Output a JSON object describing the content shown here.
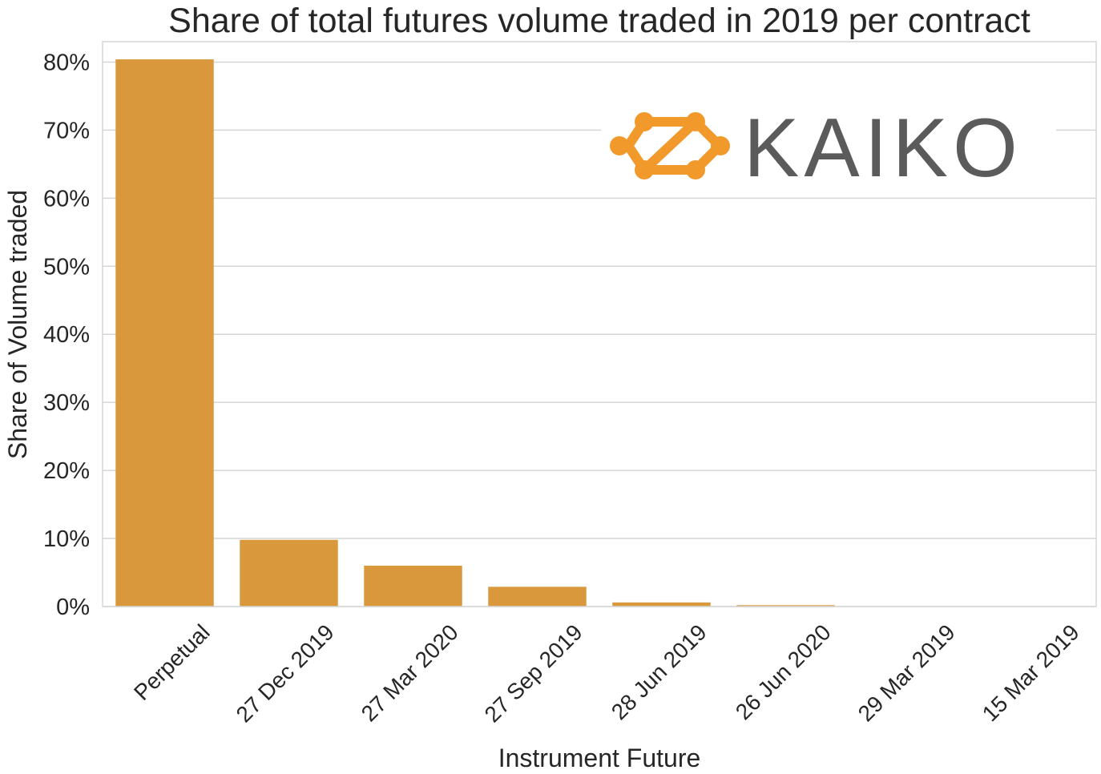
{
  "chart_data": {
    "type": "bar",
    "title": "Share of total futures volume traded in 2019 per contract",
    "xlabel": "Instrument Future",
    "ylabel": "Share of Volume traded",
    "categories": [
      "Perpetual",
      "27 Dec 2019",
      "27 Mar 2020",
      "27 Sep 2019",
      "28 Jun 2019",
      "26 Jun 2020",
      "29 Mar 2019",
      "15 Mar 2019"
    ],
    "values": [
      80.4,
      9.8,
      6.0,
      2.9,
      0.6,
      0.2,
      0.05,
      0.02
    ],
    "ylim": [
      0,
      83
    ],
    "yticks": [
      0,
      10,
      20,
      30,
      40,
      50,
      60,
      70,
      80
    ],
    "ytick_suffix": "%",
    "bar_color": "#d9983b",
    "grid": true
  },
  "watermark": {
    "wordmark": "KAIKO",
    "logo_color": "#f19a2b",
    "text_color": "#5b5b5b"
  }
}
